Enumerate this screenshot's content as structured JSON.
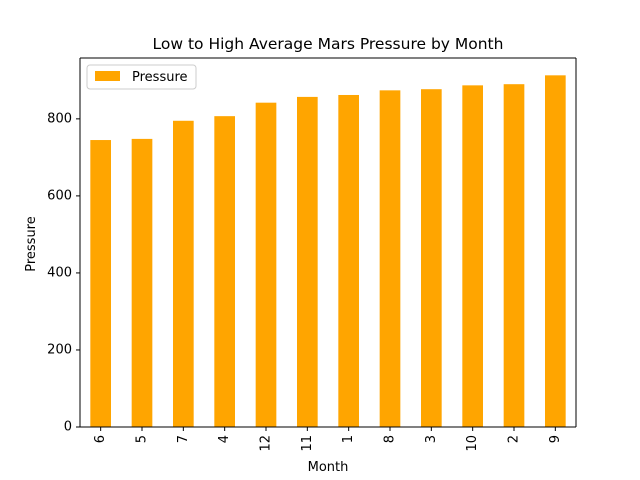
{
  "chart_data": {
    "type": "bar",
    "title": "Low to High Average Mars Pressure by Month",
    "xlabel": "Month",
    "ylabel": "Pressure",
    "categories": [
      "6",
      "5",
      "7",
      "4",
      "12",
      "11",
      "1",
      "8",
      "3",
      "10",
      "2",
      "9"
    ],
    "series": [
      {
        "name": "Pressure",
        "values": [
          745,
          748,
          795,
          807,
          842,
          857,
          862,
          874,
          877,
          887,
          890,
          913
        ]
      }
    ],
    "ylim": [
      0,
      958
    ],
    "yticks": [
      "0",
      "200",
      "400",
      "600",
      "800"
    ],
    "ytick_values": [
      0,
      200,
      400,
      600,
      800
    ],
    "legend": {
      "position": "top-left",
      "labels": [
        "Pressure"
      ]
    },
    "grid": false,
    "bar_color": "#FFA500",
    "axis_color": "#000000"
  }
}
